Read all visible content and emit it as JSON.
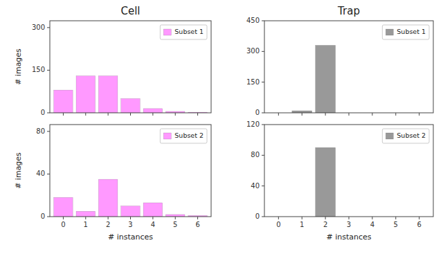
{
  "chart_data": [
    {
      "type": "bar",
      "title": "Cell",
      "x": [
        0,
        1,
        2,
        3,
        4,
        5,
        6
      ],
      "series": [
        {
          "name": "Subset 1",
          "color": "#FF99FF",
          "values": [
            80,
            130,
            130,
            50,
            15,
            5,
            2
          ]
        }
      ],
      "xlim": [
        -0.6,
        6.6
      ],
      "xticks": [
        0,
        1,
        2,
        3,
        4,
        5,
        6
      ],
      "ylim": [
        0,
        324
      ],
      "yticks": [
        0,
        150,
        300
      ],
      "ylabel": "# images",
      "legend": "upper right",
      "tick_labels": "y"
    },
    {
      "type": "bar",
      "title": "Trap",
      "x": [
        0,
        1,
        2,
        3,
        4,
        5,
        6
      ],
      "series": [
        {
          "name": "Subset 1",
          "color": "#999999",
          "values": [
            0,
            10,
            330,
            0,
            0,
            0,
            0
          ]
        }
      ],
      "xlim": [
        -0.6,
        6.6
      ],
      "xticks": [
        0,
        1,
        2,
        3,
        4,
        5,
        6
      ],
      "ylim": [
        0,
        450
      ],
      "yticks": [
        0,
        150,
        300,
        450
      ],
      "legend": "upper right",
      "tick_labels": "y"
    },
    {
      "type": "bar",
      "x": [
        0,
        1,
        2,
        3,
        4,
        5,
        6
      ],
      "series": [
        {
          "name": "Subset 2",
          "color": "#FF99FF",
          "values": [
            18,
            5,
            35,
            10,
            13,
            2,
            1
          ]
        }
      ],
      "xlim": [
        -0.6,
        6.6
      ],
      "xticks": [
        0,
        1,
        2,
        3,
        4,
        5,
        6
      ],
      "ylim": [
        0,
        86.4
      ],
      "yticks": [
        0,
        40,
        80
      ],
      "ylabel": "# images",
      "xlabel": "# instances",
      "legend": "upper right"
    },
    {
      "type": "bar",
      "x": [
        0,
        1,
        2,
        3,
        4,
        5,
        6
      ],
      "series": [
        {
          "name": "Subset 2",
          "color": "#999999",
          "values": [
            0,
            0,
            90,
            0,
            0,
            0,
            0
          ]
        }
      ],
      "xlim": [
        -0.6,
        6.6
      ],
      "xticks": [
        0,
        1,
        2,
        3,
        4,
        5,
        6
      ],
      "ylim": [
        0,
        120
      ],
      "yticks": [
        0,
        40,
        80,
        120
      ],
      "xlabel": "# instances",
      "legend": "upper right"
    }
  ]
}
